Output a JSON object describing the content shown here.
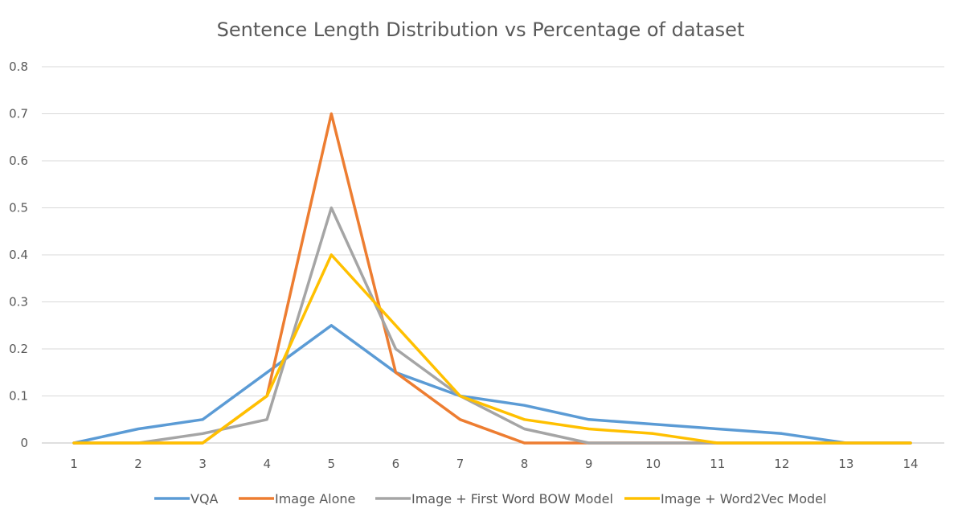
{
  "chart_data": {
    "type": "line",
    "title": "Sentence Length Distribution  vs Percentage of dataset",
    "xlabel": "",
    "ylabel": "",
    "x": [
      1,
      2,
      3,
      4,
      5,
      6,
      7,
      8,
      9,
      10,
      11,
      12,
      13,
      14
    ],
    "ylim": [
      0,
      0.8
    ],
    "yticks": [
      "0",
      "0.1",
      "0.2",
      "0.3",
      "0.4",
      "0.5",
      "0.6",
      "0.7",
      "0.8"
    ],
    "grid": true,
    "legend_position": "bottom",
    "series": [
      {
        "name": "VQA",
        "color": "#5B9BD5",
        "values": [
          0,
          0.03,
          0.05,
          0.15,
          0.25,
          0.15,
          0.1,
          0.08,
          0.05,
          0.04,
          0.03,
          0.02,
          0,
          0
        ]
      },
      {
        "name": "Image Alone",
        "color": "#ED7D31",
        "values": [
          0,
          0,
          0,
          0.1,
          0.7,
          0.15,
          0.05,
          0,
          0,
          0,
          0,
          0,
          0,
          0
        ]
      },
      {
        "name": "Image + First Word BOW Model",
        "color": "#A5A5A5",
        "values": [
          0,
          0,
          0.02,
          0.05,
          0.5,
          0.2,
          0.1,
          0.03,
          0,
          0,
          0,
          0,
          0,
          0
        ]
      },
      {
        "name": "Image + Word2Vec Model",
        "color": "#FFC000",
        "values": [
          0,
          0,
          0,
          0.1,
          0.4,
          0.25,
          0.1,
          0.05,
          0.03,
          0.02,
          0,
          0,
          0,
          0
        ]
      }
    ]
  }
}
